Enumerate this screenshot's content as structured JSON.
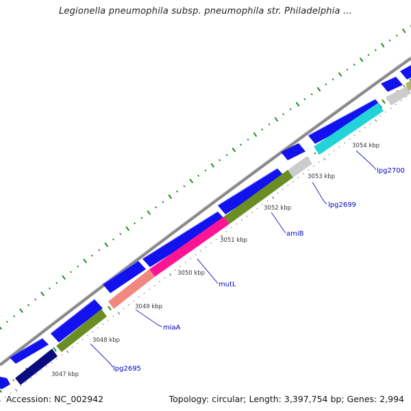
{
  "title": "Legionella pneumophila subsp. pneumophila str. Philadelphia ...",
  "footer": {
    "accession": "Accession: NC_002942",
    "summary": "Topology: circular; Length: 3,397,754 bp; Genes: 2,994"
  },
  "colors": {
    "backbone": "#8c8c8c",
    "dots": "#1f8a1f",
    "cds_forward": "#0d0de6",
    "label": "#0000c8",
    "tick_label": "#333333"
  },
  "ticks": [
    {
      "label": "3047 kbp"
    },
    {
      "label": "3048 kbp"
    },
    {
      "label": "3049 kbp"
    },
    {
      "label": "3050 kbp"
    },
    {
      "label": "3051 kbp"
    },
    {
      "label": "3052 kbp"
    },
    {
      "label": "3053 kbp"
    },
    {
      "label": "3054 kbp"
    }
  ],
  "genes": [
    {
      "name": "lpg2695"
    },
    {
      "name": "miaA"
    },
    {
      "name": "mutL"
    },
    {
      "name": "amiB"
    },
    {
      "name": "lpg2699"
    },
    {
      "name": "lpg2700"
    }
  ]
}
